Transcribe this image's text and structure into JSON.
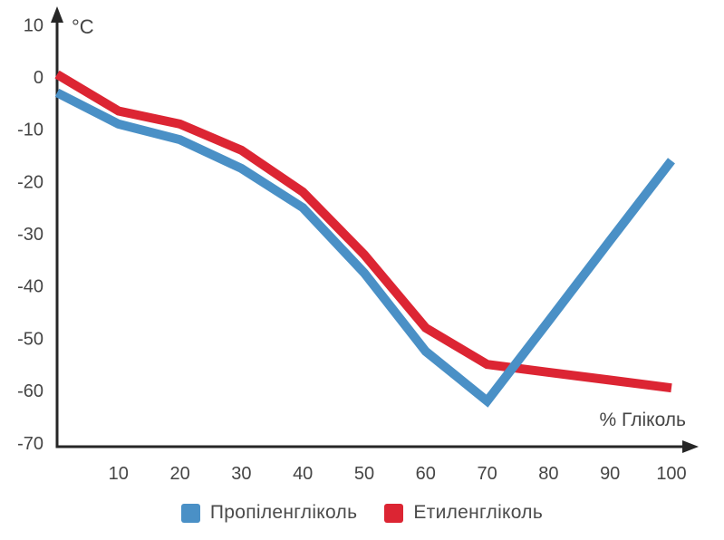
{
  "chart_data": {
    "type": "line",
    "title": "",
    "y_axis_label": "°C",
    "x_axis_label": "% Гліколь",
    "x_range": [
      0,
      100
    ],
    "y_range": [
      -70,
      10
    ],
    "x_ticks": [
      10,
      20,
      30,
      40,
      50,
      60,
      70,
      80,
      90,
      100
    ],
    "y_ticks": [
      10,
      0,
      -10,
      -20,
      -30,
      -40,
      -50,
      -60,
      -70
    ],
    "grid": false,
    "legend_position": "bottom",
    "x": [
      0,
      10,
      20,
      30,
      40,
      50,
      60,
      70,
      80,
      90,
      100
    ],
    "series": [
      {
        "name": "Пропіленгліколь",
        "color": "#4A90C6",
        "values": [
          -3,
          -9,
          -12,
          -17.5,
          -25,
          -37.5,
          -52.5,
          -62,
          -46.7,
          -31.3,
          -16
        ]
      },
      {
        "name": "Етиленгліколь",
        "color": "#DC2533",
        "values": [
          0.5,
          -6.5,
          -9,
          -14,
          -22,
          -34,
          -48,
          -55,
          -56.5,
          -58,
          -59.5
        ]
      }
    ]
  },
  "axis": {
    "color": "#262626",
    "y_unit_label": "°C",
    "x_unit_label": "% Гліколь"
  },
  "legend": {
    "items": [
      {
        "label": "Пропіленгліколь",
        "color": "#4A90C6"
      },
      {
        "label": "Етиленгліколь",
        "color": "#DC2533"
      }
    ]
  }
}
